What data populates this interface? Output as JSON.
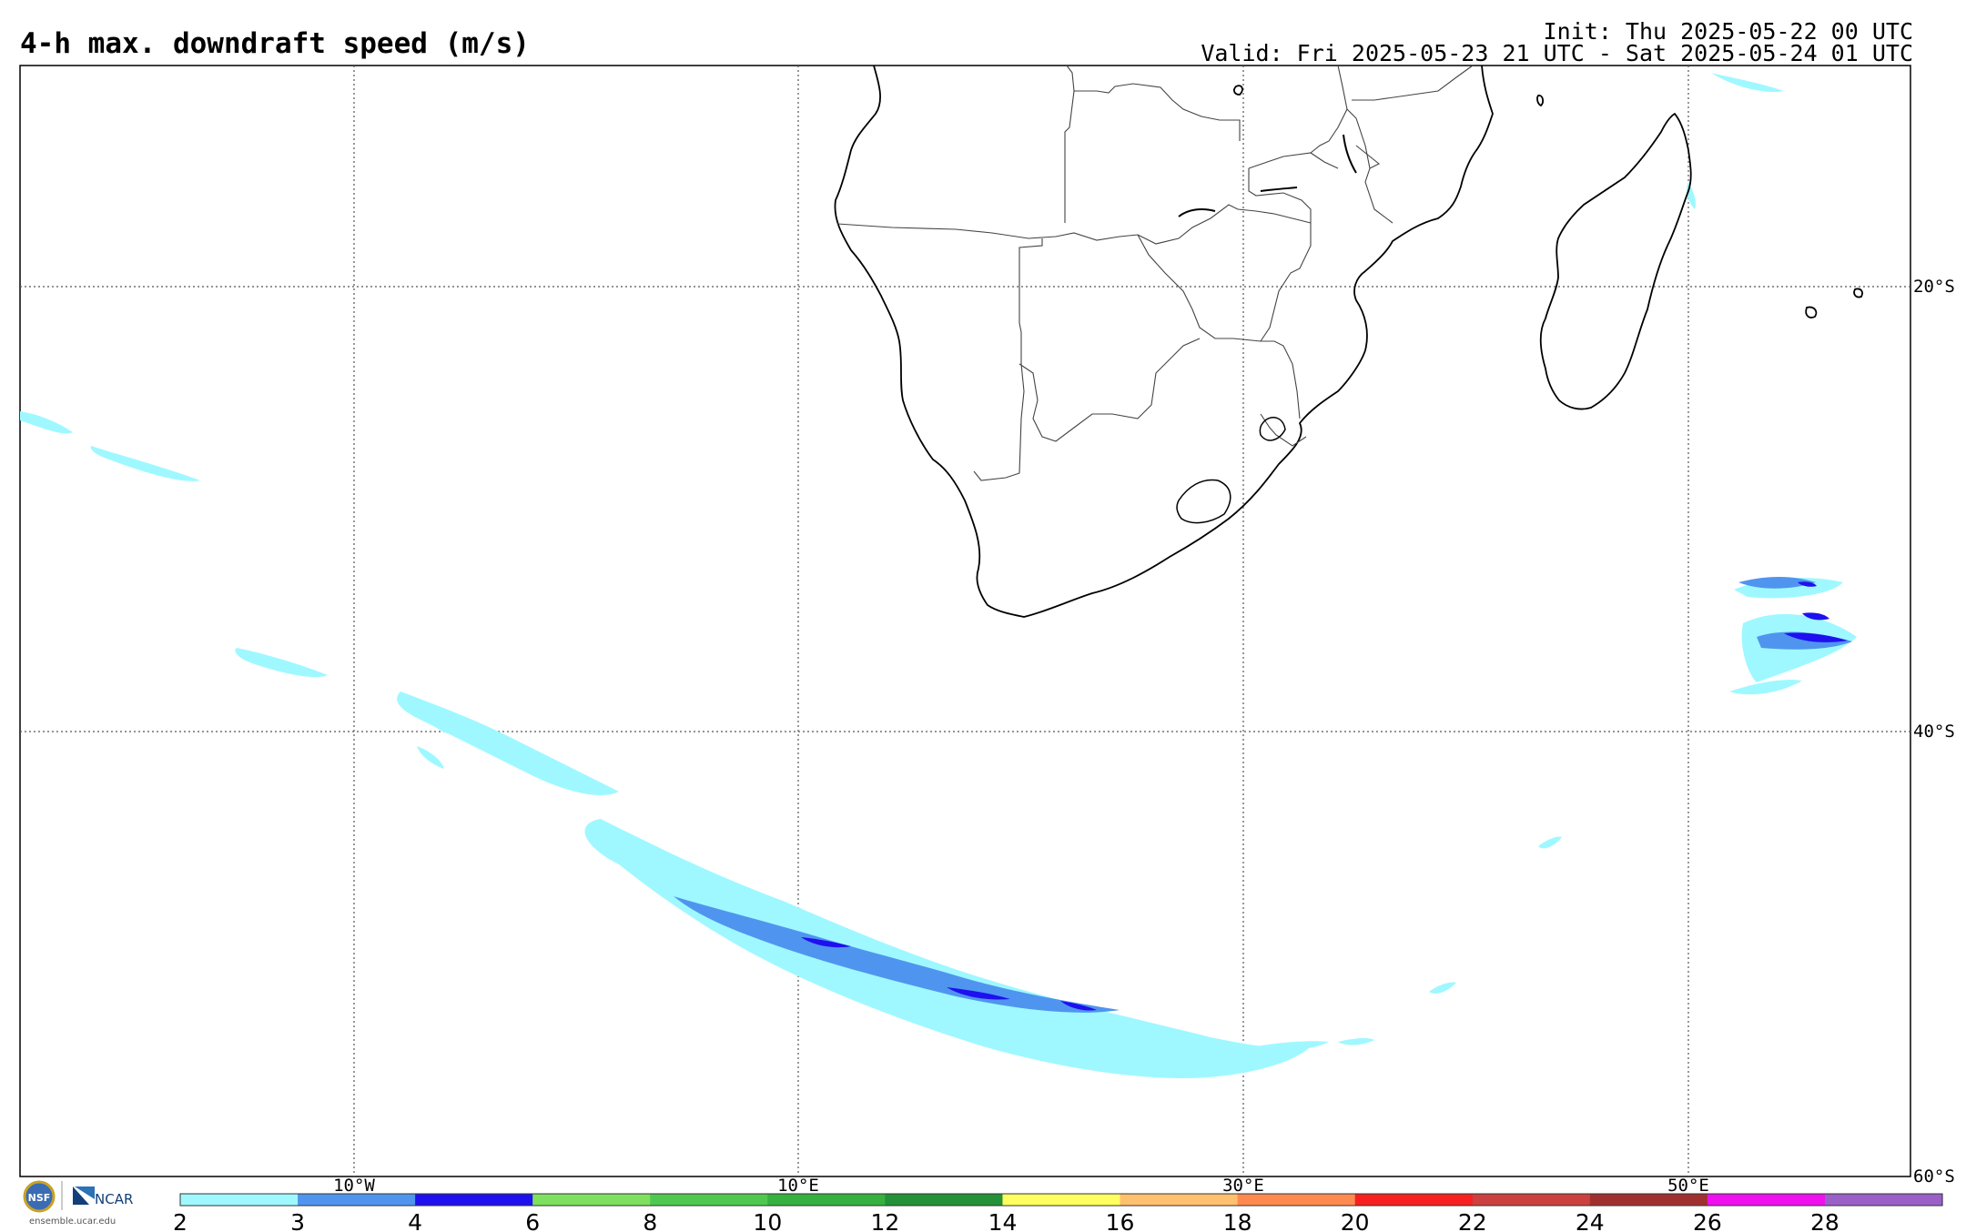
{
  "header": {
    "title": "4-h max. downdraft speed (m/s)",
    "init": "Init: Thu 2025-05-22 00 UTC",
    "valid": "Valid: Fri 2025-05-23 21 UTC - Sat 2025-05-24 01 UTC"
  },
  "map": {
    "lon_labels": [
      "10°W",
      "10°E",
      "30°E",
      "50°E"
    ],
    "lat_labels": [
      "20°S",
      "40°S",
      "60°S"
    ]
  },
  "colorbar": {
    "ticks": [
      "2",
      "3",
      "4",
      "6",
      "8",
      "10",
      "12",
      "14",
      "16",
      "18",
      "20",
      "22",
      "24",
      "26",
      "28"
    ],
    "colors": [
      "#9ff8ff",
      "#4f95ef",
      "#1f10f0",
      "#7fe05f",
      "#4fc84f",
      "#36b03f",
      "#249038",
      "#ffff5f",
      "#ffc06f",
      "#ff8a50",
      "#f72020",
      "#cc4040",
      "#a03030",
      "#ee10ee",
      "#9a60c8"
    ]
  },
  "logos": {
    "nsf": "NSF",
    "ncar": "NCAR",
    "url": "ensemble.ucar.edu"
  }
}
